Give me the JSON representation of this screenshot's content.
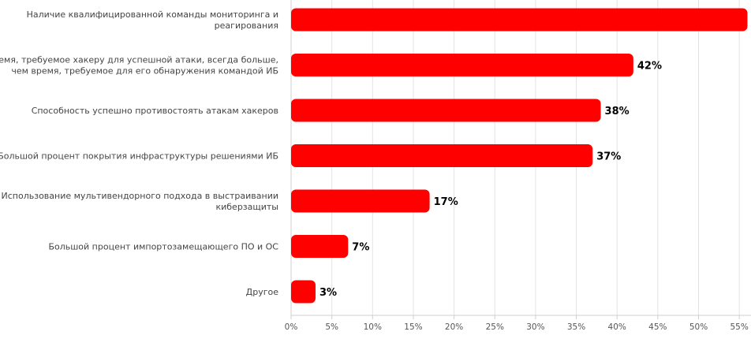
{
  "chart_data": {
    "type": "bar",
    "orientation": "horizontal",
    "categories": [
      [
        "Наличие квалифицированной команды мониторинга и",
        "реагирования"
      ],
      [
        "Время, требуемое хакеру для успешной атаки, всегда больше,",
        "чем время, требуемое для его обнаружения командой ИБ"
      ],
      [
        "Способность успешно противостоять атакам хакеров"
      ],
      [
        "Большой процент покрытия инфраструктуры решениями ИБ"
      ],
      [
        "Использование мультивендорного подхода в выстраивании",
        "киберзащиты"
      ],
      [
        "Большой процент импортозамещающего ПО и ОС"
      ],
      [
        "Другое"
      ]
    ],
    "values": [
      56,
      42,
      38,
      37,
      17,
      7,
      3
    ],
    "value_labels": [
      "",
      "42%",
      "38%",
      "37%",
      "17%",
      "7%",
      "3%"
    ],
    "x_ticks": [
      "0%",
      "5%",
      "10%",
      "15%",
      "20%",
      "25%",
      "30%",
      "35%",
      "40%",
      "45%",
      "50%",
      "55%"
    ],
    "xlim": [
      0,
      56
    ],
    "bar_color": "#ff0000",
    "grid": true,
    "legend": "none"
  }
}
